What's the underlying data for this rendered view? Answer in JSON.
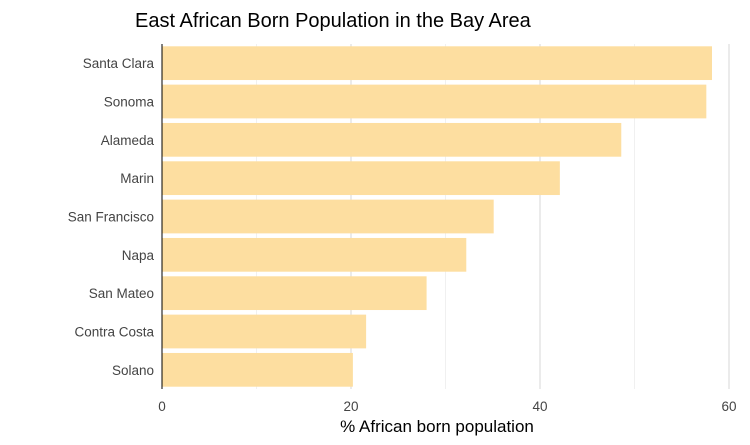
{
  "chart_data": {
    "type": "bar",
    "orientation": "horizontal",
    "title": "East African Born Population in the Bay Area",
    "xlabel": "% African born population",
    "ylabel": "",
    "categories": [
      "Santa Clara",
      "Sonoma",
      "Alameda",
      "Marin",
      "San Francisco",
      "Napa",
      "San Mateo",
      "Contra Costa",
      "Solano"
    ],
    "values": [
      58.2,
      57.6,
      48.6,
      42.1,
      35.1,
      32.2,
      28.0,
      21.6,
      20.2
    ],
    "xlim": [
      0,
      60
    ],
    "xticks": [
      "0",
      "20",
      "40",
      "60"
    ],
    "grid": true,
    "bar_color": "#fddea0"
  }
}
